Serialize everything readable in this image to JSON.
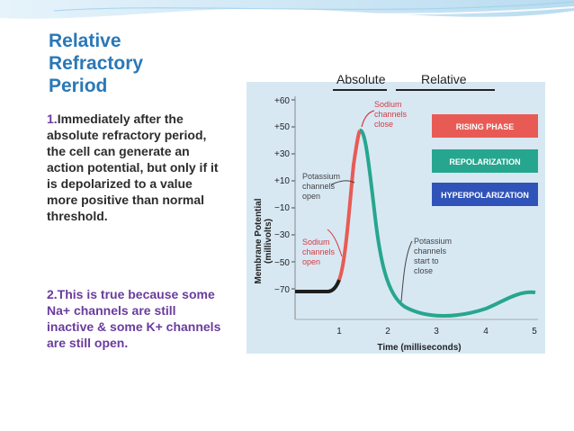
{
  "slide": {
    "title": "Relative\nRefractory\nPeriod",
    "point1": {
      "number": "1.",
      "text": "Immediately after the absolute refractory period, the cell  can generate an action potential, but only if it is depolarized to a value more positive than normal threshold."
    },
    "point2": {
      "text": "2.This is true because some Na+ channels are still inactive & some K+ channels are still open."
    }
  },
  "figure": {
    "period_labels": {
      "absolute": "Absolute",
      "relative": "Relative"
    },
    "y_axis_label_line1": "Membrane Potential",
    "y_axis_label_line2": "(millivolts)",
    "x_axis_label": "Time (milliseconds)",
    "y_ticks": [
      "+60",
      "+50",
      "+30",
      "+10",
      "−10",
      "−30",
      "−50",
      "−70"
    ],
    "x_ticks": [
      "1",
      "2",
      "3",
      "4",
      "5"
    ],
    "legend": [
      {
        "label": "RISING PHASE",
        "color": "#e85b55"
      },
      {
        "label": "REPOLARIZATION",
        "color": "#27a68f"
      },
      {
        "label": "HYPERPOLARIZATION",
        "color": "#2f53b8"
      }
    ],
    "annotations": {
      "sodium_close": [
        "Sodium",
        "channels",
        "close"
      ],
      "potassium_open": [
        "Potassium",
        "channels",
        "open"
      ],
      "sodium_open": [
        "Sodium",
        "channels",
        "open"
      ],
      "potassium_close": [
        "Potassium",
        "channels",
        "start to",
        "close"
      ]
    },
    "colors": {
      "background": "#d7e8f3",
      "rising": "#e85b55",
      "repolarization": "#27a68f",
      "baseline": "#1e1e1e",
      "annotation": "#d23c43"
    }
  }
}
